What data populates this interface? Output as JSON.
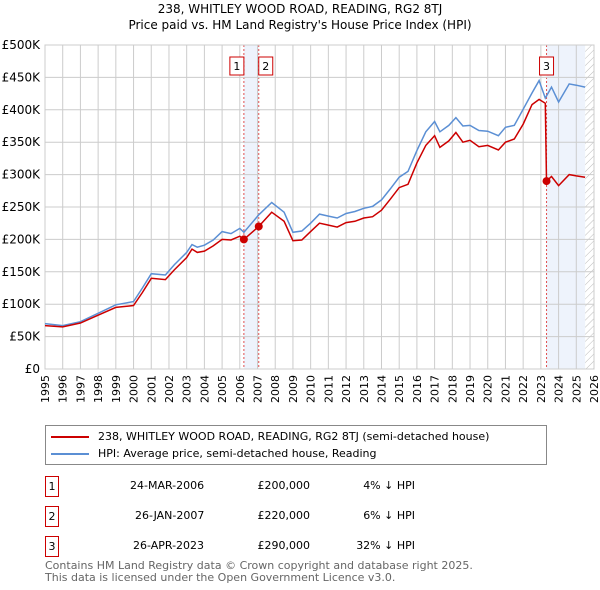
{
  "chart_data": {
    "type": "line",
    "title": "238, WHITLEY WOOD ROAD, READING, RG2 8TJ",
    "subtitle": "Price paid vs. HM Land Registry's House Price Index (HPI)",
    "xlim": [
      1995,
      2026
    ],
    "ylim": [
      0,
      500000
    ],
    "x_ticks": [
      "1995",
      "1996",
      "1997",
      "1998",
      "1999",
      "2000",
      "2001",
      "2002",
      "2003",
      "2004",
      "2005",
      "2006",
      "2007",
      "2008",
      "2009",
      "2010",
      "2011",
      "2012",
      "2013",
      "2014",
      "2015",
      "2016",
      "2017",
      "2018",
      "2019",
      "2020",
      "2021",
      "2022",
      "2023",
      "2024",
      "2025",
      "2026"
    ],
    "y_ticks": [
      {
        "v": 0,
        "l": "£0"
      },
      {
        "v": 50000,
        "l": "£50K"
      },
      {
        "v": 100000,
        "l": "£100K"
      },
      {
        "v": 150000,
        "l": "£150K"
      },
      {
        "v": 200000,
        "l": "£200K"
      },
      {
        "v": 250000,
        "l": "£250K"
      },
      {
        "v": 300000,
        "l": "£300K"
      },
      {
        "v": 350000,
        "l": "£350K"
      },
      {
        "v": 400000,
        "l": "£400K"
      },
      {
        "v": 450000,
        "l": "£450K"
      },
      {
        "v": 500000,
        "l": "£500K"
      }
    ],
    "grid": true,
    "series": [
      {
        "name": "238, WHITLEY WOOD ROAD, READING, RG2 8TJ (semi-detached house)",
        "color": "#cc0000",
        "x": [
          1995,
          1996,
          1997,
          1998,
          1999,
          2000,
          2000.5,
          2001,
          2001.8,
          2002.3,
          2003,
          2003.3,
          2003.6,
          2004,
          2004.5,
          2005,
          2005.5,
          2006,
          2006.23,
          2007.07,
          2007.8,
          2008.5,
          2009,
          2009.5,
          2010,
          2010.5,
          2011,
          2011.5,
          2012,
          2012.5,
          2013,
          2013.5,
          2014,
          2014.5,
          2015,
          2015.5,
          2016,
          2016.5,
          2017,
          2017.3,
          2017.8,
          2018.2,
          2018.6,
          2019,
          2019.5,
          2020,
          2020.6,
          2021,
          2021.5,
          2022,
          2022.5,
          2022.9,
          2023.25,
          2023.32,
          2023.6,
          2024,
          2024.6,
          2025,
          2025.5
        ],
        "y": [
          67000,
          65000,
          71000,
          83000,
          95000,
          98000,
          118000,
          140000,
          138000,
          153000,
          172000,
          185000,
          180000,
          182000,
          190000,
          200000,
          199000,
          205000,
          200000,
          220000,
          242000,
          228000,
          198000,
          199000,
          212000,
          225000,
          222000,
          219000,
          226000,
          228000,
          233000,
          235000,
          245000,
          262000,
          280000,
          285000,
          318000,
          345000,
          360000,
          342000,
          352000,
          365000,
          350000,
          353000,
          343000,
          345000,
          338000,
          350000,
          355000,
          378000,
          408000,
          416000,
          410000,
          290000,
          297000,
          283000,
          300000,
          298000,
          296000
        ]
      },
      {
        "name": "HPI: Average price, semi-detached house, Reading",
        "color": "#5b8fd4",
        "x": [
          1995,
          1996,
          1997,
          1998,
          1999,
          2000,
          2000.5,
          2001,
          2001.8,
          2002.3,
          2003,
          2003.3,
          2003.6,
          2004,
          2004.5,
          2005,
          2005.5,
          2006,
          2006.23,
          2007.07,
          2007.8,
          2008.5,
          2009,
          2009.5,
          2010,
          2010.5,
          2011,
          2011.5,
          2012,
          2012.5,
          2013,
          2013.5,
          2014,
          2014.5,
          2015,
          2015.5,
          2016,
          2016.5,
          2017,
          2017.3,
          2017.8,
          2018.2,
          2018.6,
          2019,
          2019.5,
          2020,
          2020.6,
          2021,
          2021.5,
          2022,
          2022.5,
          2022.9,
          2023.25,
          2023.6,
          2024,
          2024.6,
          2025,
          2025.5
        ],
        "y": [
          70000,
          67000,
          73000,
          86000,
          99000,
          104000,
          125000,
          147000,
          145000,
          161000,
          180000,
          192000,
          188000,
          191000,
          199000,
          212000,
          209000,
          217000,
          211000,
          238000,
          257000,
          242000,
          211000,
          213000,
          225000,
          239000,
          236000,
          233000,
          240000,
          243000,
          248000,
          251000,
          261000,
          278000,
          296000,
          305000,
          337000,
          366000,
          382000,
          366000,
          376000,
          388000,
          375000,
          376000,
          368000,
          367000,
          360000,
          373000,
          376000,
          401000,
          426000,
          445000,
          418000,
          435000,
          412000,
          440000,
          438000,
          435000
        ]
      }
    ],
    "sales": [
      {
        "label": "1",
        "x": 2006.23,
        "y": 200000
      },
      {
        "label": "2",
        "x": 2007.07,
        "y": 220000
      },
      {
        "label": "3",
        "x": 2023.32,
        "y": 290000
      }
    ],
    "shaded": [
      [
        2006.23,
        2007.07
      ],
      [
        2023.32,
        2025.5
      ]
    ],
    "hatch_from": 2025.5,
    "legend": "bottom"
  },
  "table": [
    {
      "n": "1",
      "date": "24-MAR-2006",
      "price": "£200,000",
      "pct": "4% ↓ HPI"
    },
    {
      "n": "2",
      "date": "26-JAN-2007",
      "price": "£220,000",
      "pct": "6% ↓ HPI"
    },
    {
      "n": "3",
      "date": "26-APR-2023",
      "price": "£290,000",
      "pct": "32% ↓ HPI"
    }
  ],
  "footer": [
    "Contains HM Land Registry data © Crown copyright and database right 2025.",
    "This data is licensed under the Open Government Licence v3.0."
  ]
}
